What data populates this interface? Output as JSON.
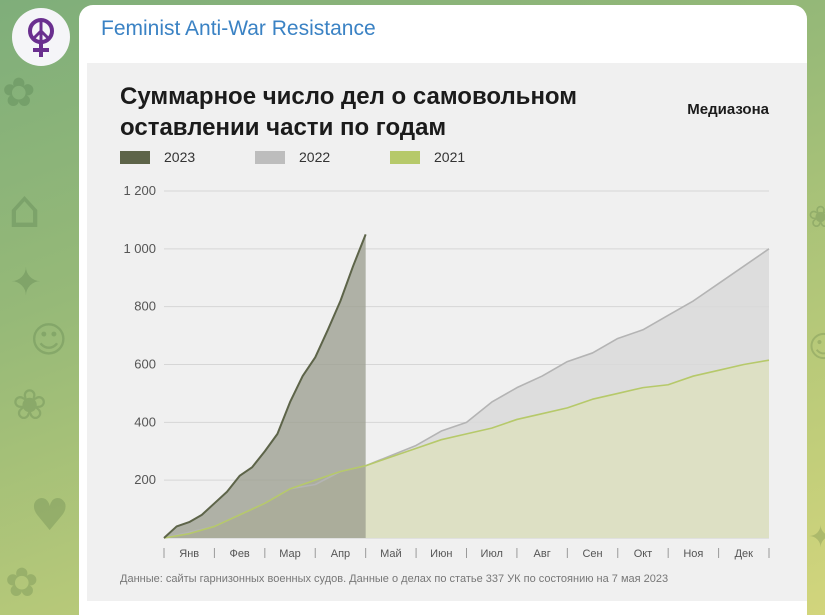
{
  "channel": {
    "name": "Feminist Anti-War Resistance",
    "avatar_icon": "venus-peace-icon"
  },
  "post_image": {
    "brand": "Медиазона",
    "source_note": "Данные: сайты гарнизонных военных судов. Данные о делах по статье 337 УК по состоянию на 7 мая 2023"
  },
  "chart_data": {
    "type": "area",
    "title": "Суммарное число дел о самовольном оставлении части по годам",
    "xlabel": "",
    "ylabel": "",
    "ylim": [
      0,
      1200
    ],
    "yticks": [
      200,
      400,
      600,
      800,
      1000,
      1200
    ],
    "ytick_labels": [
      "200",
      "400",
      "600",
      "800",
      "1 000",
      "1 200"
    ],
    "xlim": [
      0,
      12
    ],
    "month_labels": [
      "Янв",
      "Фев",
      "Мар",
      "Апр",
      "Май",
      "Июн",
      "Июл",
      "Авг",
      "Сен",
      "Окт",
      "Ноя",
      "Дек"
    ],
    "grid": "horizontal",
    "legend_position": "top-left",
    "series": [
      {
        "name": "2023",
        "color": "#5d6449",
        "fill": "#9a9c8e",
        "x": [
          0,
          0.25,
          0.5,
          0.75,
          1.0,
          1.25,
          1.5,
          1.75,
          2.0,
          2.25,
          2.5,
          2.75,
          3.0,
          3.25,
          3.5,
          3.75,
          4.0
        ],
        "y": [
          0,
          40,
          55,
          80,
          120,
          160,
          215,
          245,
          300,
          360,
          470,
          560,
          625,
          720,
          820,
          940,
          1050
        ]
      },
      {
        "name": "2022",
        "color": "#b4b4b4",
        "fill": "#d9d9d9",
        "x": [
          0,
          0.5,
          1.0,
          1.5,
          2.0,
          2.5,
          3.0,
          3.5,
          4.0,
          4.5,
          5.0,
          5.5,
          6.0,
          6.5,
          7.0,
          7.5,
          8.0,
          8.5,
          9.0,
          9.5,
          10.0,
          10.5,
          11.0,
          11.5,
          12.0
        ],
        "y": [
          0,
          20,
          40,
          80,
          120,
          170,
          185,
          230,
          250,
          285,
          320,
          370,
          400,
          470,
          520,
          560,
          610,
          640,
          690,
          720,
          770,
          820,
          880,
          940,
          1000
        ]
      },
      {
        "name": "2021",
        "color": "#b6c96a",
        "fill": "#dde1bf",
        "x": [
          0,
          0.5,
          1.0,
          1.5,
          2.0,
          2.5,
          3.0,
          3.5,
          4.0,
          4.5,
          5.0,
          5.5,
          6.0,
          6.5,
          7.0,
          7.5,
          8.0,
          8.5,
          9.0,
          9.5,
          10.0,
          10.5,
          11.0,
          11.5,
          12.0
        ],
        "y": [
          0,
          15,
          40,
          80,
          120,
          170,
          200,
          230,
          250,
          280,
          310,
          340,
          360,
          380,
          410,
          430,
          450,
          480,
          500,
          520,
          530,
          560,
          580,
          600,
          615
        ]
      }
    ]
  }
}
